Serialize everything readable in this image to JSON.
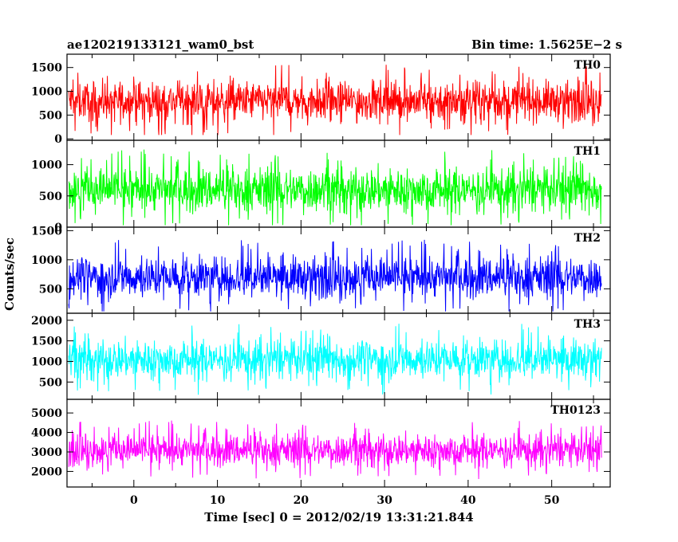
{
  "header": {
    "left": "ae120219133121_wam0_bst",
    "right": "Bin time: 1.5625E−2 s"
  },
  "chart_data": {
    "type": "line",
    "title": "ae120219133121_wam0_bst",
    "subtitle": "Bin time: 1.5625E−2 s",
    "xlabel": "Time [sec] 0 = 2012/02/19 13:31:21.844",
    "ylabel": "Counts/sec",
    "xlim": [
      -8,
      57
    ],
    "xticks": [
      0,
      10,
      20,
      30,
      40,
      50
    ],
    "x_start": -7.8,
    "x_end": 56,
    "bin_time": 0.015625,
    "grid": false,
    "panels": [
      {
        "name": "TH0",
        "color": "#ff0000",
        "ylim": [
          -30,
          1780
        ],
        "yticks": [
          0,
          500,
          1000,
          1500
        ],
        "mean": 800,
        "noise": 200,
        "envelope_high": 1750,
        "envelope_low": 80
      },
      {
        "name": "TH1",
        "color": "#00ff00",
        "ylim": [
          0,
          1390
        ],
        "yticks": [
          0,
          500,
          1000
        ],
        "mean": 600,
        "noise": 170,
        "envelope_high": 1370,
        "envelope_low": 30
      },
      {
        "name": "TH2",
        "color": "#0000ff",
        "ylim": [
          80,
          1560
        ],
        "yticks": [
          500,
          1000,
          1500
        ],
        "mean": 700,
        "noise": 170,
        "envelope_high": 1540,
        "envelope_low": 110
      },
      {
        "name": "TH3",
        "color": "#00ffff",
        "ylim": [
          80,
          2170
        ],
        "yticks": [
          500,
          1000,
          1500,
          2000
        ],
        "mean": 1050,
        "noise": 230,
        "envelope_high": 2100,
        "envelope_low": 100
      },
      {
        "name": "TH0123",
        "color": "#ff00ff",
        "ylim": [
          1200,
          5700
        ],
        "yticks": [
          2000,
          3000,
          4000,
          5000
        ],
        "mean": 3100,
        "noise": 400,
        "envelope_high": 5600,
        "envelope_low": 1400
      }
    ]
  }
}
